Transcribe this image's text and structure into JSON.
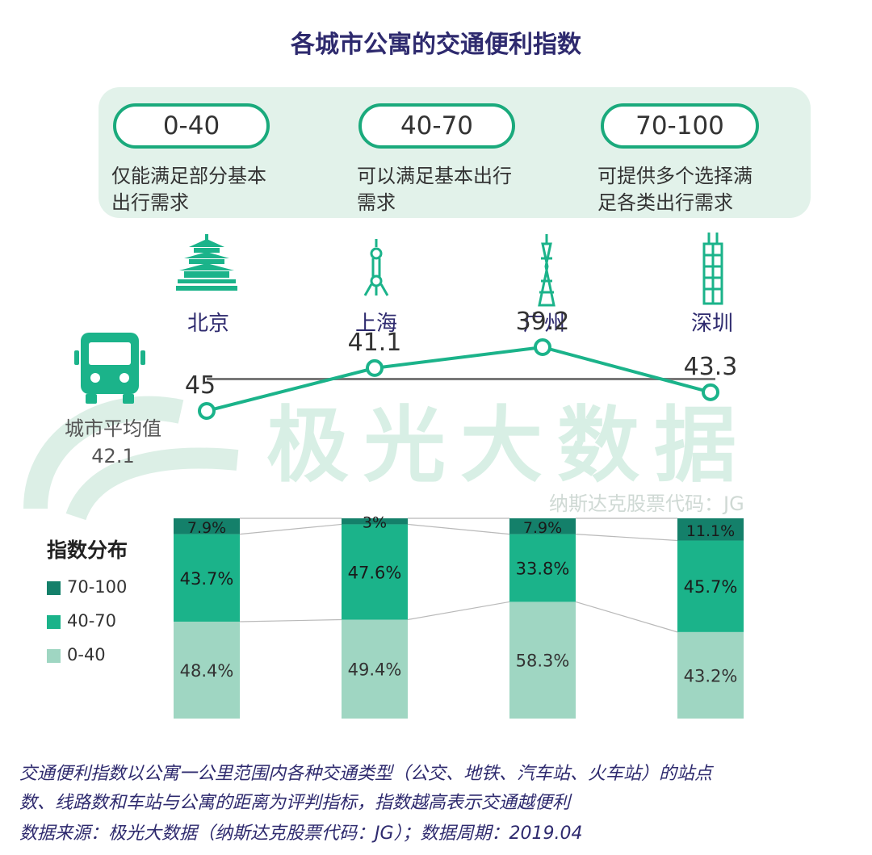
{
  "title": "各城市公寓的交通便利指数",
  "ranges": [
    {
      "label": "0-40",
      "desc_line1": "仅能满足部分基本",
      "desc_line2": "出行需求"
    },
    {
      "label": "40-70",
      "desc_line1": "可以满足基本出行",
      "desc_line2": "需求"
    },
    {
      "label": "70-100",
      "desc_line1": "可提供多个选择满",
      "desc_line2": "足各类出行需求"
    }
  ],
  "cities": [
    "北京",
    "上海",
    "广州",
    "深圳"
  ],
  "icons": [
    "temple-of-heaven-icon",
    "oriental-pearl-tower-icon",
    "canton-tower-icon",
    "skyscraper-icon"
  ],
  "bus_icon": "bus-icon",
  "watermark": "极光大数据",
  "watermark_sub": "纳斯达克股票代码：JG",
  "average": {
    "label": "城市平均值",
    "value": "42.1"
  },
  "distribution_title": "指数分布",
  "legend": [
    {
      "label": "70-100",
      "color": "#14806a"
    },
    {
      "label": "40-70",
      "color": "#1bb38a"
    },
    {
      "label": "0-40",
      "color": "#9fd6c2"
    }
  ],
  "chart_data": [
    {
      "type": "line",
      "categories": [
        "北京",
        "上海",
        "广州",
        "深圳"
      ],
      "values": [
        45,
        41.1,
        39.2,
        43.3
      ],
      "value_labels": [
        "45",
        "41.1",
        "39.2",
        "43.3"
      ],
      "reference_line": 42.1,
      "color": "#1bb38a"
    },
    {
      "type": "bar",
      "stacked": true,
      "categories": [
        "北京",
        "上海",
        "广州",
        "深圳"
      ],
      "series": [
        {
          "name": "0-40",
          "values": [
            48.4,
            49.4,
            58.3,
            43.2
          ],
          "labels": [
            "48.4%",
            "49.4%",
            "58.3%",
            "43.2%"
          ],
          "color": "#9fd6c2"
        },
        {
          "name": "40-70",
          "values": [
            43.7,
            47.6,
            33.8,
            45.7
          ],
          "labels": [
            "43.7%",
            "47.6%",
            "33.8%",
            "45.7%"
          ],
          "color": "#1bb38a"
        },
        {
          "name": "70-100",
          "values": [
            7.9,
            3,
            7.9,
            11.1
          ],
          "labels": [
            "7.9%",
            "3%",
            "7.9%",
            "11.1%"
          ],
          "color": "#14806a"
        }
      ]
    }
  ],
  "footnote": {
    "line1": "交通便利指数以公寓一公里范围内各种交通类型（公交、地铁、汽车站、火车站）的站点",
    "line2": "数、线路数和车站与公寓的距离为评判指标，指数越高表示交通越便利",
    "line3": "数据来源：极光大数据（纳斯达克股票代码：JG）；数据周期：2019.04"
  }
}
